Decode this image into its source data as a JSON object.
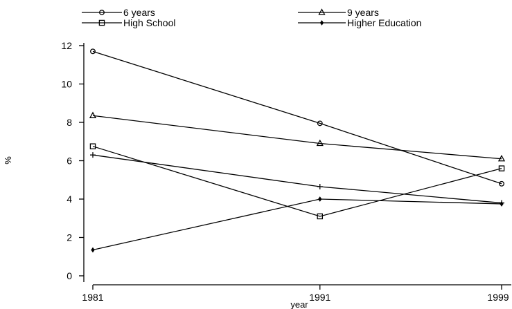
{
  "chart_data": {
    "type": "line",
    "title": "",
    "xlabel": "year",
    "ylabel": "%",
    "x": [
      1981,
      1991,
      1999
    ],
    "x_tick_labels": [
      "1981",
      "1991",
      "1999"
    ],
    "y_ticks": [
      0,
      2,
      4,
      6,
      8,
      10,
      12
    ],
    "y_tick_labels": [
      "0",
      "2",
      "4",
      "6",
      "8",
      "10",
      "12"
    ],
    "xlim": [
      1981,
      1999
    ],
    "ylim": [
      0,
      12.2
    ],
    "grid": false,
    "legend_position": "top",
    "colors": {
      "line": "#000000",
      "background": "#ffffff"
    },
    "series": [
      {
        "name": "6 years",
        "marker": "circle",
        "values": [
          11.7,
          7.95,
          4.8
        ]
      },
      {
        "name": "9 years",
        "marker": "triangle",
        "values": [
          8.35,
          6.9,
          6.1
        ]
      },
      {
        "name": "High School",
        "marker": "square",
        "values": [
          6.75,
          3.1,
          5.6
        ]
      },
      {
        "name": "Higher Education",
        "marker": "dot",
        "values": [
          1.35,
          4.0,
          3.75
        ]
      },
      {
        "name": "",
        "marker": "plus",
        "values": [
          6.3,
          4.65,
          3.8
        ]
      }
    ]
  }
}
